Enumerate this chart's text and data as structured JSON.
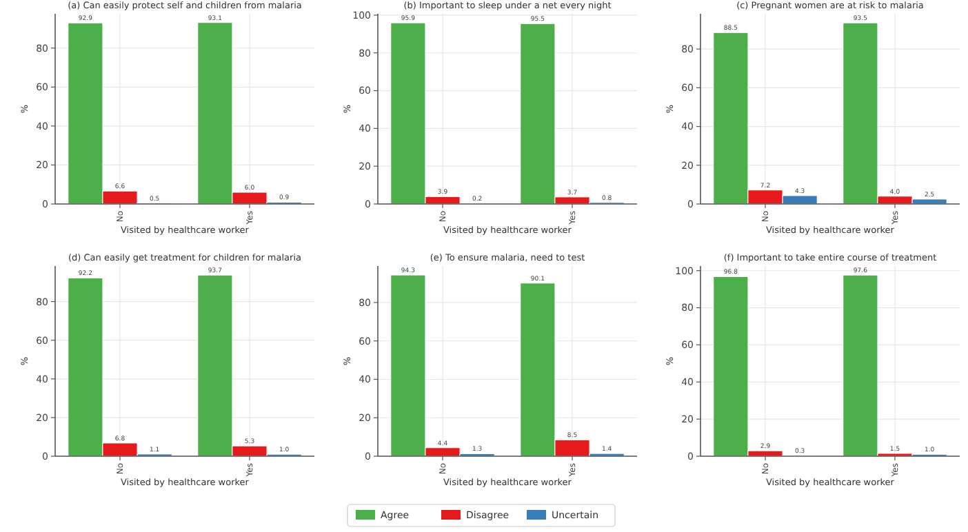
{
  "chart_data": [
    {
      "type": "bar",
      "title": "(a) Can easily protect self and children from malaria",
      "xlabel": "Visited by healthcare worker",
      "ylabel": "%",
      "categories": [
        "No",
        "Yes"
      ],
      "ylim": [
        0,
        97.6
      ],
      "yticks": [
        0,
        20,
        40,
        60,
        80
      ],
      "grid": true,
      "legend": "bottom",
      "series": [
        {
          "name": "Agree",
          "color": "#4daf4a",
          "values": [
            92.9,
            93.1
          ],
          "value_labels": [
            "92.9",
            "93.1"
          ]
        },
        {
          "name": "Disagree",
          "color": "#e41a1c",
          "values": [
            6.6,
            6.0
          ],
          "value_labels": [
            "6.6",
            "6.0"
          ]
        },
        {
          "name": "Uncertain",
          "color": "#377eb8",
          "values": [
            0.5,
            0.9
          ],
          "value_labels": [
            "0.5",
            "0.9"
          ]
        }
      ]
    },
    {
      "type": "bar",
      "title": "(b) Important to sleep under a net every night",
      "xlabel": "Visited by healthcare worker",
      "ylabel": "%",
      "categories": [
        "No",
        "Yes"
      ],
      "ylim": [
        0,
        100.7
      ],
      "yticks": [
        0,
        20,
        40,
        60,
        80,
        100
      ],
      "grid": true,
      "series": [
        {
          "color": "#4daf4a",
          "values": [
            95.9,
            95.5
          ],
          "value_labels": [
            "95.9",
            "95.5"
          ]
        },
        {
          "color": "#e41a1c",
          "values": [
            3.9,
            3.7
          ],
          "value_labels": [
            "3.9",
            "3.7"
          ]
        },
        {
          "color": "#377eb8",
          "values": [
            0.2,
            0.8
          ],
          "value_labels": [
            "0.2",
            "0.8"
          ]
        }
      ]
    },
    {
      "type": "bar",
      "title": "(c) Pregnant women are at risk to malaria",
      "xlabel": "Visited by healthcare worker",
      "ylabel": "%",
      "categories": [
        "No",
        "Yes"
      ],
      "ylim": [
        0,
        98.2
      ],
      "yticks": [
        0,
        20,
        40,
        60,
        80
      ],
      "grid": true,
      "series": [
        {
          "color": "#4daf4a",
          "values": [
            88.5,
            93.5
          ],
          "value_labels": [
            "88.5",
            "93.5"
          ]
        },
        {
          "color": "#e41a1c",
          "values": [
            7.2,
            4.0
          ],
          "value_labels": [
            "7.2",
            "4.0"
          ]
        },
        {
          "color": "#377eb8",
          "values": [
            4.3,
            2.5
          ],
          "value_labels": [
            "4.3",
            "2.5"
          ]
        }
      ]
    },
    {
      "type": "bar",
      "title": "(d) Can easily get treatment for children for malaria",
      "xlabel": "Visited by healthcare worker",
      "ylabel": "%",
      "categories": [
        "No",
        "Yes"
      ],
      "ylim": [
        0,
        98.4
      ],
      "yticks": [
        0,
        20,
        40,
        60,
        80
      ],
      "grid": true,
      "series": [
        {
          "color": "#4daf4a",
          "values": [
            92.2,
            93.7
          ],
          "value_labels": [
            "92.2",
            "93.7"
          ]
        },
        {
          "color": "#e41a1c",
          "values": [
            6.8,
            5.3
          ],
          "value_labels": [
            "6.8",
            "5.3"
          ]
        },
        {
          "color": "#377eb8",
          "values": [
            1.1,
            1.0
          ],
          "value_labels": [
            "1.1",
            "1.0"
          ]
        }
      ]
    },
    {
      "type": "bar",
      "title": "(e) To ensure malaria, need to test",
      "xlabel": "Visited by healthcare worker",
      "ylabel": "%",
      "categories": [
        "No",
        "Yes"
      ],
      "ylim": [
        0,
        99
      ],
      "yticks": [
        0,
        20,
        40,
        60,
        80
      ],
      "grid": true,
      "series": [
        {
          "color": "#4daf4a",
          "values": [
            94.3,
            90.1
          ],
          "value_labels": [
            "94.3",
            "90.1"
          ]
        },
        {
          "color": "#e41a1c",
          "values": [
            4.4,
            8.5
          ],
          "value_labels": [
            "4.4",
            "8.5"
          ]
        },
        {
          "color": "#377eb8",
          "values": [
            1.3,
            1.4
          ],
          "value_labels": [
            "1.3",
            "1.4"
          ]
        }
      ]
    },
    {
      "type": "bar",
      "title": "(f) Important to take entire course of treatment",
      "xlabel": "Visited by healthcare worker",
      "ylabel": "%",
      "categories": [
        "No",
        "Yes"
      ],
      "ylim": [
        0,
        102.5
      ],
      "yticks": [
        0,
        20,
        40,
        60,
        80,
        100
      ],
      "grid": true,
      "series": [
        {
          "color": "#4daf4a",
          "values": [
            96.8,
            97.6
          ],
          "value_labels": [
            "96.8",
            "97.6"
          ]
        },
        {
          "color": "#e41a1c",
          "values": [
            2.9,
            1.5
          ],
          "value_labels": [
            "2.9",
            "1.5"
          ]
        },
        {
          "color": "#377eb8",
          "values": [
            0.3,
            1.0
          ],
          "value_labels": [
            "0.3",
            "1.0"
          ]
        }
      ]
    }
  ]
}
